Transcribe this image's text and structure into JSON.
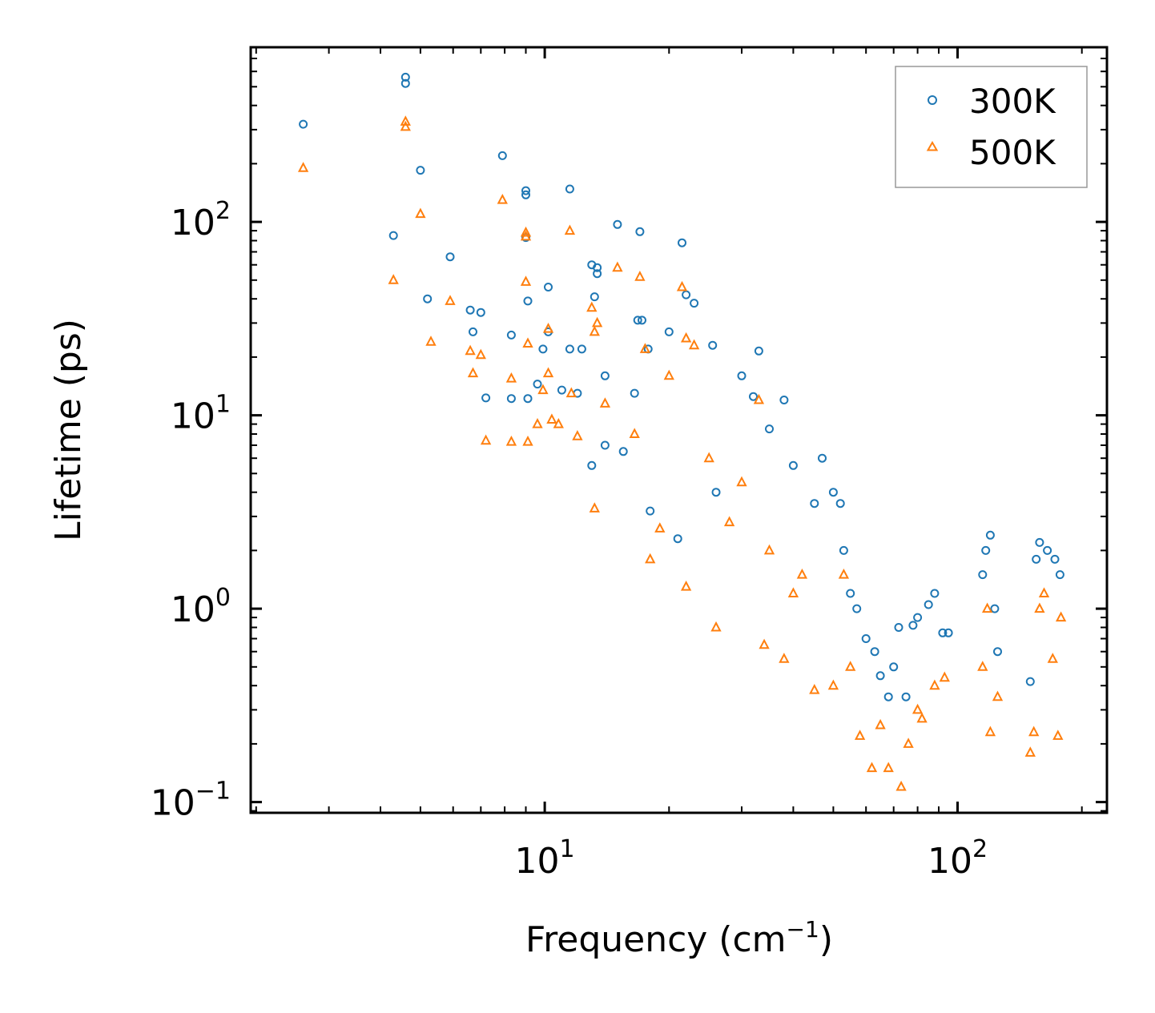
{
  "chart_data": {
    "type": "scatter",
    "title": "",
    "xlabel": "Frequency (cm",
    "xlabel_sup": "−1",
    "xlabel_close": ")",
    "ylabel": "Lifetime (ps)",
    "xscale": "log",
    "yscale": "log",
    "xlim": [
      1.94,
      230
    ],
    "ylim": [
      0.088,
      800
    ],
    "x_ticks": [
      {
        "value": 10,
        "base": "10",
        "exp": "1"
      },
      {
        "value": 100,
        "base": "10",
        "exp": "2"
      }
    ],
    "y_ticks": [
      {
        "value": 0.1,
        "base": "10",
        "exp": "−1"
      },
      {
        "value": 1,
        "base": "10",
        "exp": "0"
      },
      {
        "value": 10,
        "base": "10",
        "exp": "1"
      },
      {
        "value": 100,
        "base": "10",
        "exp": "2"
      }
    ],
    "legend_position": "top-right",
    "series": [
      {
        "name": "300K",
        "marker": "circle",
        "color": "#1f77b4",
        "points": [
          [
            2.6,
            320
          ],
          [
            4.3,
            85
          ],
          [
            4.6,
            560
          ],
          [
            4.6,
            520
          ],
          [
            5.0,
            185
          ],
          [
            5.2,
            40
          ],
          [
            5.9,
            66
          ],
          [
            6.6,
            35
          ],
          [
            6.7,
            27
          ],
          [
            7.0,
            34
          ],
          [
            7.2,
            12.3
          ],
          [
            7.9,
            220
          ],
          [
            8.3,
            26
          ],
          [
            8.3,
            12.2
          ],
          [
            9.0,
            145
          ],
          [
            9.0,
            138
          ],
          [
            9.0,
            83
          ],
          [
            9.1,
            39
          ],
          [
            9.1,
            12.2
          ],
          [
            9.6,
            14.5
          ],
          [
            9.9,
            22
          ],
          [
            10.2,
            46
          ],
          [
            10.2,
            27
          ],
          [
            11.0,
            13.5
          ],
          [
            11.5,
            148
          ],
          [
            11.5,
            22
          ],
          [
            12.0,
            13.0
          ],
          [
            12.3,
            22
          ],
          [
            13.0,
            60
          ],
          [
            13.2,
            41
          ],
          [
            13.4,
            58
          ],
          [
            13.4,
            54
          ],
          [
            14.0,
            16
          ],
          [
            15.0,
            97
          ],
          [
            16.5,
            13
          ],
          [
            16.8,
            31
          ],
          [
            17.0,
            89
          ],
          [
            17.2,
            31
          ],
          [
            17.8,
            22
          ],
          [
            20.0,
            27
          ],
          [
            21.5,
            78
          ],
          [
            22.0,
            42
          ],
          [
            23.0,
            38
          ],
          [
            25.5,
            23
          ],
          [
            33.0,
            21.5
          ],
          [
            13.0,
            5.5
          ],
          [
            14.0,
            7.0
          ],
          [
            15.5,
            6.5
          ],
          [
            18.0,
            3.2
          ],
          [
            21.0,
            2.3
          ],
          [
            26.0,
            4.0
          ],
          [
            38.0,
            12.0
          ],
          [
            50.0,
            4.0
          ],
          [
            47.0,
            6.0
          ],
          [
            52.0,
            3.5
          ],
          [
            53.0,
            2.0
          ],
          [
            60.0,
            0.7
          ],
          [
            63.0,
            0.6
          ],
          [
            70.0,
            0.5
          ],
          [
            72.0,
            0.8
          ],
          [
            78.0,
            0.82
          ],
          [
            80.0,
            0.9
          ],
          [
            85.0,
            1.05
          ],
          [
            88.0,
            1.2
          ],
          [
            92.0,
            0.75
          ],
          [
            95.0,
            0.75
          ],
          [
            115.0,
            1.5
          ],
          [
            117.0,
            2.0
          ],
          [
            120.0,
            2.4
          ],
          [
            123.0,
            1.0
          ],
          [
            125.0,
            0.6
          ],
          [
            150.0,
            0.42
          ],
          [
            155.0,
            1.8
          ],
          [
            158.0,
            2.2
          ],
          [
            165.0,
            2.0
          ],
          [
            172.0,
            1.8
          ],
          [
            177.0,
            1.5
          ],
          [
            35.0,
            8.5
          ],
          [
            40.0,
            5.5
          ],
          [
            45.0,
            3.5
          ],
          [
            55.0,
            1.2
          ],
          [
            57.0,
            1.0
          ],
          [
            65.0,
            0.45
          ],
          [
            75.0,
            0.35
          ],
          [
            68.0,
            0.35
          ],
          [
            30.0,
            16
          ],
          [
            32.0,
            12.5
          ]
        ]
      },
      {
        "name": "500K",
        "marker": "triangle",
        "color": "#ff7f0e",
        "points": [
          [
            2.6,
            190
          ],
          [
            4.3,
            50
          ],
          [
            4.6,
            330
          ],
          [
            4.6,
            310
          ],
          [
            5.0,
            110
          ],
          [
            5.3,
            24
          ],
          [
            5.9,
            39
          ],
          [
            6.6,
            21.5
          ],
          [
            6.7,
            16.5
          ],
          [
            7.0,
            20.5
          ],
          [
            7.2,
            7.4
          ],
          [
            7.9,
            130
          ],
          [
            8.3,
            15.5
          ],
          [
            8.3,
            7.3
          ],
          [
            9.0,
            88
          ],
          [
            9.0,
            84
          ],
          [
            9.0,
            49
          ],
          [
            9.1,
            23.5
          ],
          [
            9.1,
            7.3
          ],
          [
            9.6,
            9.0
          ],
          [
            9.9,
            13.5
          ],
          [
            10.2,
            28
          ],
          [
            10.2,
            16.5
          ],
          [
            10.4,
            9.5
          ],
          [
            10.8,
            9.0
          ],
          [
            11.5,
            90
          ],
          [
            11.6,
            13.0
          ],
          [
            12.0,
            7.8
          ],
          [
            13.0,
            36
          ],
          [
            13.2,
            27
          ],
          [
            13.4,
            30
          ],
          [
            13.2,
            3.3
          ],
          [
            14.0,
            11.5
          ],
          [
            15.0,
            58
          ],
          [
            16.5,
            8.0
          ],
          [
            17.0,
            52
          ],
          [
            17.5,
            22
          ],
          [
            18.0,
            1.8
          ],
          [
            20.0,
            16
          ],
          [
            21.5,
            46
          ],
          [
            22.0,
            25
          ],
          [
            23.0,
            23
          ],
          [
            33.0,
            12.0
          ],
          [
            19.0,
            2.6
          ],
          [
            22.0,
            1.3
          ],
          [
            26.0,
            0.8
          ],
          [
            34.0,
            0.65
          ],
          [
            38.0,
            0.55
          ],
          [
            45.0,
            0.38
          ],
          [
            50.0,
            0.4
          ],
          [
            53.0,
            1.5
          ],
          [
            58.0,
            0.22
          ],
          [
            62.0,
            0.15
          ],
          [
            68.0,
            0.15
          ],
          [
            73.0,
            0.12
          ],
          [
            76.0,
            0.2
          ],
          [
            82.0,
            0.27
          ],
          [
            88.0,
            0.4
          ],
          [
            93.0,
            0.44
          ],
          [
            115.0,
            0.5
          ],
          [
            118.0,
            1.0
          ],
          [
            120.0,
            0.23
          ],
          [
            125.0,
            0.35
          ],
          [
            150.0,
            0.18
          ],
          [
            153.0,
            0.23
          ],
          [
            158.0,
            1.0
          ],
          [
            162.0,
            1.2
          ],
          [
            170.0,
            0.55
          ],
          [
            175.0,
            0.22
          ],
          [
            178.0,
            0.9
          ],
          [
            28.0,
            2.8
          ],
          [
            30.0,
            4.5
          ],
          [
            35.0,
            2.0
          ],
          [
            40.0,
            1.2
          ],
          [
            42.0,
            1.5
          ],
          [
            55.0,
            0.5
          ],
          [
            65.0,
            0.25
          ],
          [
            80.0,
            0.3
          ],
          [
            25.0,
            6.0
          ]
        ]
      }
    ]
  }
}
